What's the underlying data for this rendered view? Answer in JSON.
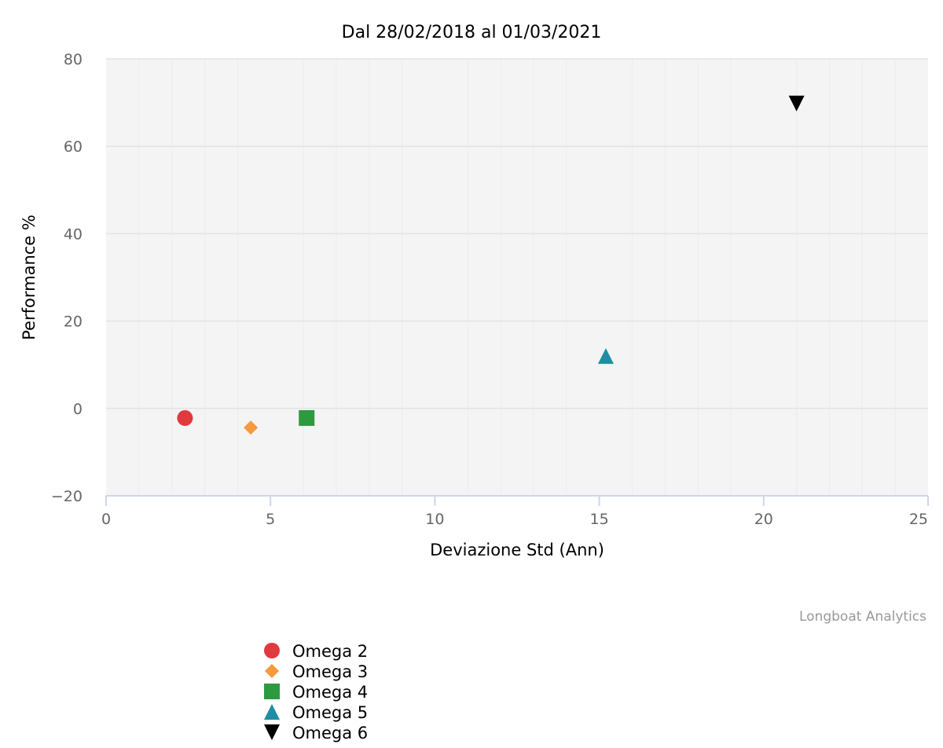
{
  "chart_data": {
    "type": "scatter",
    "title": "Dal 28/02/2018 al 01/03/2021",
    "xlabel": "Deviazione Std (Ann)",
    "ylabel": "Performance %",
    "xlim": [
      0,
      25
    ],
    "ylim": [
      -20,
      80
    ],
    "x_ticks": [
      "0",
      "5",
      "10",
      "15",
      "20",
      "25"
    ],
    "y_ticks": [
      "−20",
      "0",
      "20",
      "40",
      "60",
      "80"
    ],
    "grid": true,
    "legend_position": "bottom-left",
    "credit": "Longboat Analytics",
    "series": [
      {
        "name": "Omega 2",
        "x": 2.4,
        "y": -2.2,
        "marker": "circle",
        "color": "#e0393e"
      },
      {
        "name": "Omega 3",
        "x": 4.4,
        "y": -4.4,
        "marker": "diamond",
        "color": "#f59a3d"
      },
      {
        "name": "Omega 4",
        "x": 6.1,
        "y": -2.2,
        "marker": "square",
        "color": "#2e9a3f"
      },
      {
        "name": "Omega 5",
        "x": 15.2,
        "y": 12.0,
        "marker": "triangle",
        "color": "#1f8ea3"
      },
      {
        "name": "Omega 6",
        "x": 21.0,
        "y": 69.8,
        "marker": "triangle-down",
        "color": "#000000"
      }
    ]
  }
}
